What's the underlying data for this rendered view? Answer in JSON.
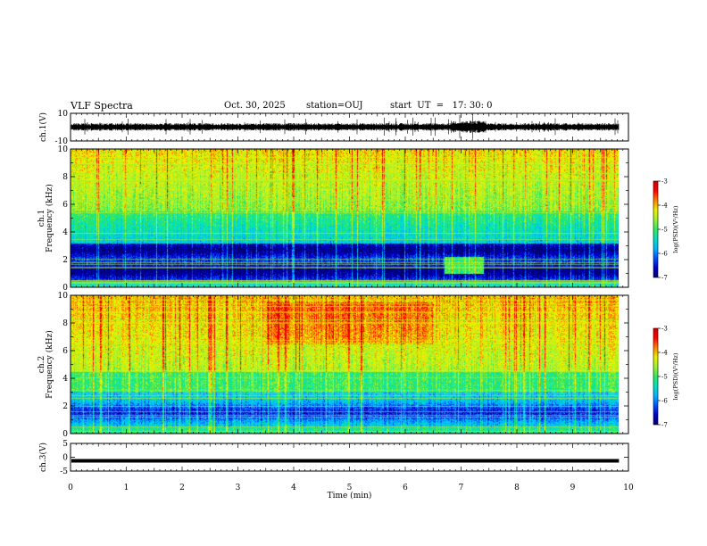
{
  "header": {
    "title": "VLF Spectra",
    "date": "Oct. 30, 2025",
    "station": "station=OUJ",
    "start_ut": "start  UT  =   17: 30: 0"
  },
  "chart_data": [
    {
      "type": "line",
      "panel": "ch1-waveform",
      "ylabel": "ch.1(V)",
      "ylim": [
        -10,
        10
      ],
      "yticks": [
        "10",
        "-10"
      ],
      "xlim": [
        0,
        10
      ],
      "series": [
        {
          "values_note_x": [
            0,
            9.83
          ],
          "baseline": 0,
          "amplitude_approx": 1.5
        }
      ]
    },
    {
      "type": "heatmap",
      "panel": "ch1-spectrogram",
      "ylabel": "ch.1\nFrequency (kHz)",
      "ylim": [
        0,
        10
      ],
      "yticks": [
        "0",
        "2",
        "4",
        "6",
        "8",
        "10"
      ],
      "xlim": [
        0,
        10
      ],
      "data_end_min": 9.83,
      "colorbar": {
        "label": "log(PSD)(V²/Hz)",
        "range": [
          -7,
          -3
        ],
        "ticks": [
          "-3",
          "-4",
          "-5",
          "-6",
          "-7"
        ]
      }
    },
    {
      "type": "heatmap",
      "panel": "ch2-spectrogram",
      "ylabel": "ch.2\nFrequency (kHz)",
      "ylim": [
        0,
        10
      ],
      "yticks": [
        "0",
        "2",
        "4",
        "6",
        "8",
        "10"
      ],
      "xlim": [
        0,
        10
      ],
      "data_end_min": 9.83,
      "colorbar": {
        "label": "log(PSD)(V²/Hz)",
        "range": [
          -7,
          -3
        ],
        "ticks": [
          "-3",
          "-4",
          "-5",
          "-6",
          "-7"
        ]
      }
    },
    {
      "type": "line",
      "panel": "ch3-waveform",
      "ylabel": "ch.3(V)",
      "ylim": [
        -5,
        5
      ],
      "yticks": [
        "5",
        "0",
        "-5"
      ],
      "xlim": [
        0,
        10
      ],
      "series": [
        {
          "constant_value": -1.3
        }
      ]
    }
  ],
  "xaxis": {
    "label": "Time  (min)",
    "ticks": [
      "0",
      "1",
      "2",
      "3",
      "4",
      "5",
      "6",
      "7",
      "8",
      "9",
      "10"
    ]
  },
  "colors": {
    "colormap": [
      "#000070",
      "#0000c8",
      "#0050ff",
      "#00b4ff",
      "#00e0c0",
      "#30e860",
      "#a0f030",
      "#e8f000",
      "#ff8000",
      "#ff0000",
      "#d00000"
    ]
  }
}
